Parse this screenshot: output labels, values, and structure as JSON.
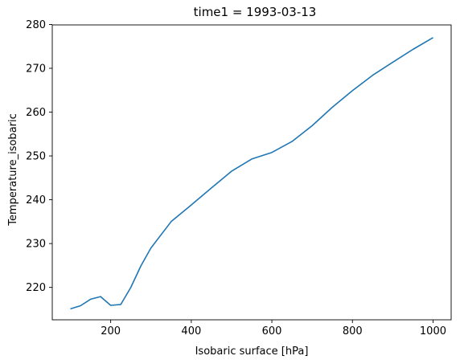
{
  "chart_data": {
    "type": "line",
    "title": "time1 = 1993-03-13",
    "xlabel": "Isobaric surface [hPa]",
    "ylabel": "Temperature_isobaric",
    "xlim": [
      55,
      1045
    ],
    "ylim": [
      212.6,
      279.9
    ],
    "xticks": [
      200,
      400,
      600,
      800,
      1000
    ],
    "yticks": [
      220,
      230,
      240,
      250,
      260,
      270,
      280
    ],
    "grid": false,
    "line_color": "#1f77b4",
    "series": [
      {
        "x": [
          100,
          125,
          150,
          175,
          200,
          225,
          250,
          275,
          300,
          350,
          400,
          450,
          500,
          550,
          600,
          650,
          700,
          750,
          800,
          850,
          900,
          950,
          1000
        ],
        "y": [
          215.1,
          215.8,
          217.3,
          217.9,
          215.9,
          216.1,
          220.0,
          224.9,
          229.0,
          235.0,
          238.8,
          242.7,
          246.5,
          249.3,
          250.8,
          253.3,
          256.9,
          261.1,
          264.9,
          268.4,
          271.4,
          274.3,
          277.0
        ]
      }
    ]
  }
}
